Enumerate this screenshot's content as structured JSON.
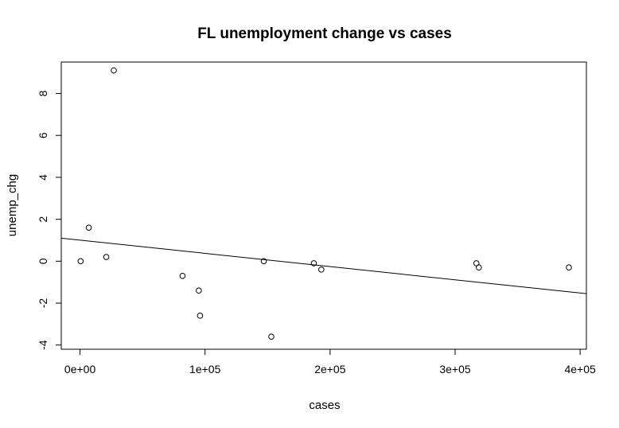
{
  "chart_data": {
    "type": "scatter",
    "title": "FL unemployment change vs cases",
    "xlabel": "cases",
    "ylabel": "unemp_chg",
    "xlim": [
      -15000,
      405000
    ],
    "ylim": [
      -4.2,
      9.5
    ],
    "x_ticks": [
      0,
      100000,
      200000,
      300000,
      400000
    ],
    "x_tick_labels": [
      "0e+00",
      "1e+05",
      "2e+05",
      "3e+05",
      "4e+05"
    ],
    "y_ticks": [
      -4,
      -2,
      0,
      2,
      4,
      6,
      8
    ],
    "y_tick_labels": [
      "-4",
      "-2",
      "0",
      "2",
      "4",
      "6",
      "8"
    ],
    "points": [
      {
        "x": 500,
        "y": 0.0
      },
      {
        "x": 7000,
        "y": 1.6
      },
      {
        "x": 21000,
        "y": 0.2
      },
      {
        "x": 27000,
        "y": 9.1
      },
      {
        "x": 82000,
        "y": -0.7
      },
      {
        "x": 95000,
        "y": -1.4
      },
      {
        "x": 96000,
        "y": -2.6
      },
      {
        "x": 147000,
        "y": 0.0
      },
      {
        "x": 153000,
        "y": -3.6
      },
      {
        "x": 187000,
        "y": -0.1
      },
      {
        "x": 193000,
        "y": -0.4
      },
      {
        "x": 317000,
        "y": -0.1
      },
      {
        "x": 319000,
        "y": -0.3
      },
      {
        "x": 391000,
        "y": -0.3
      }
    ],
    "regression_line": {
      "x": [
        -15000,
        405000
      ],
      "y": [
        1.1,
        -1.55
      ]
    },
    "grid": false,
    "legend": "none"
  }
}
